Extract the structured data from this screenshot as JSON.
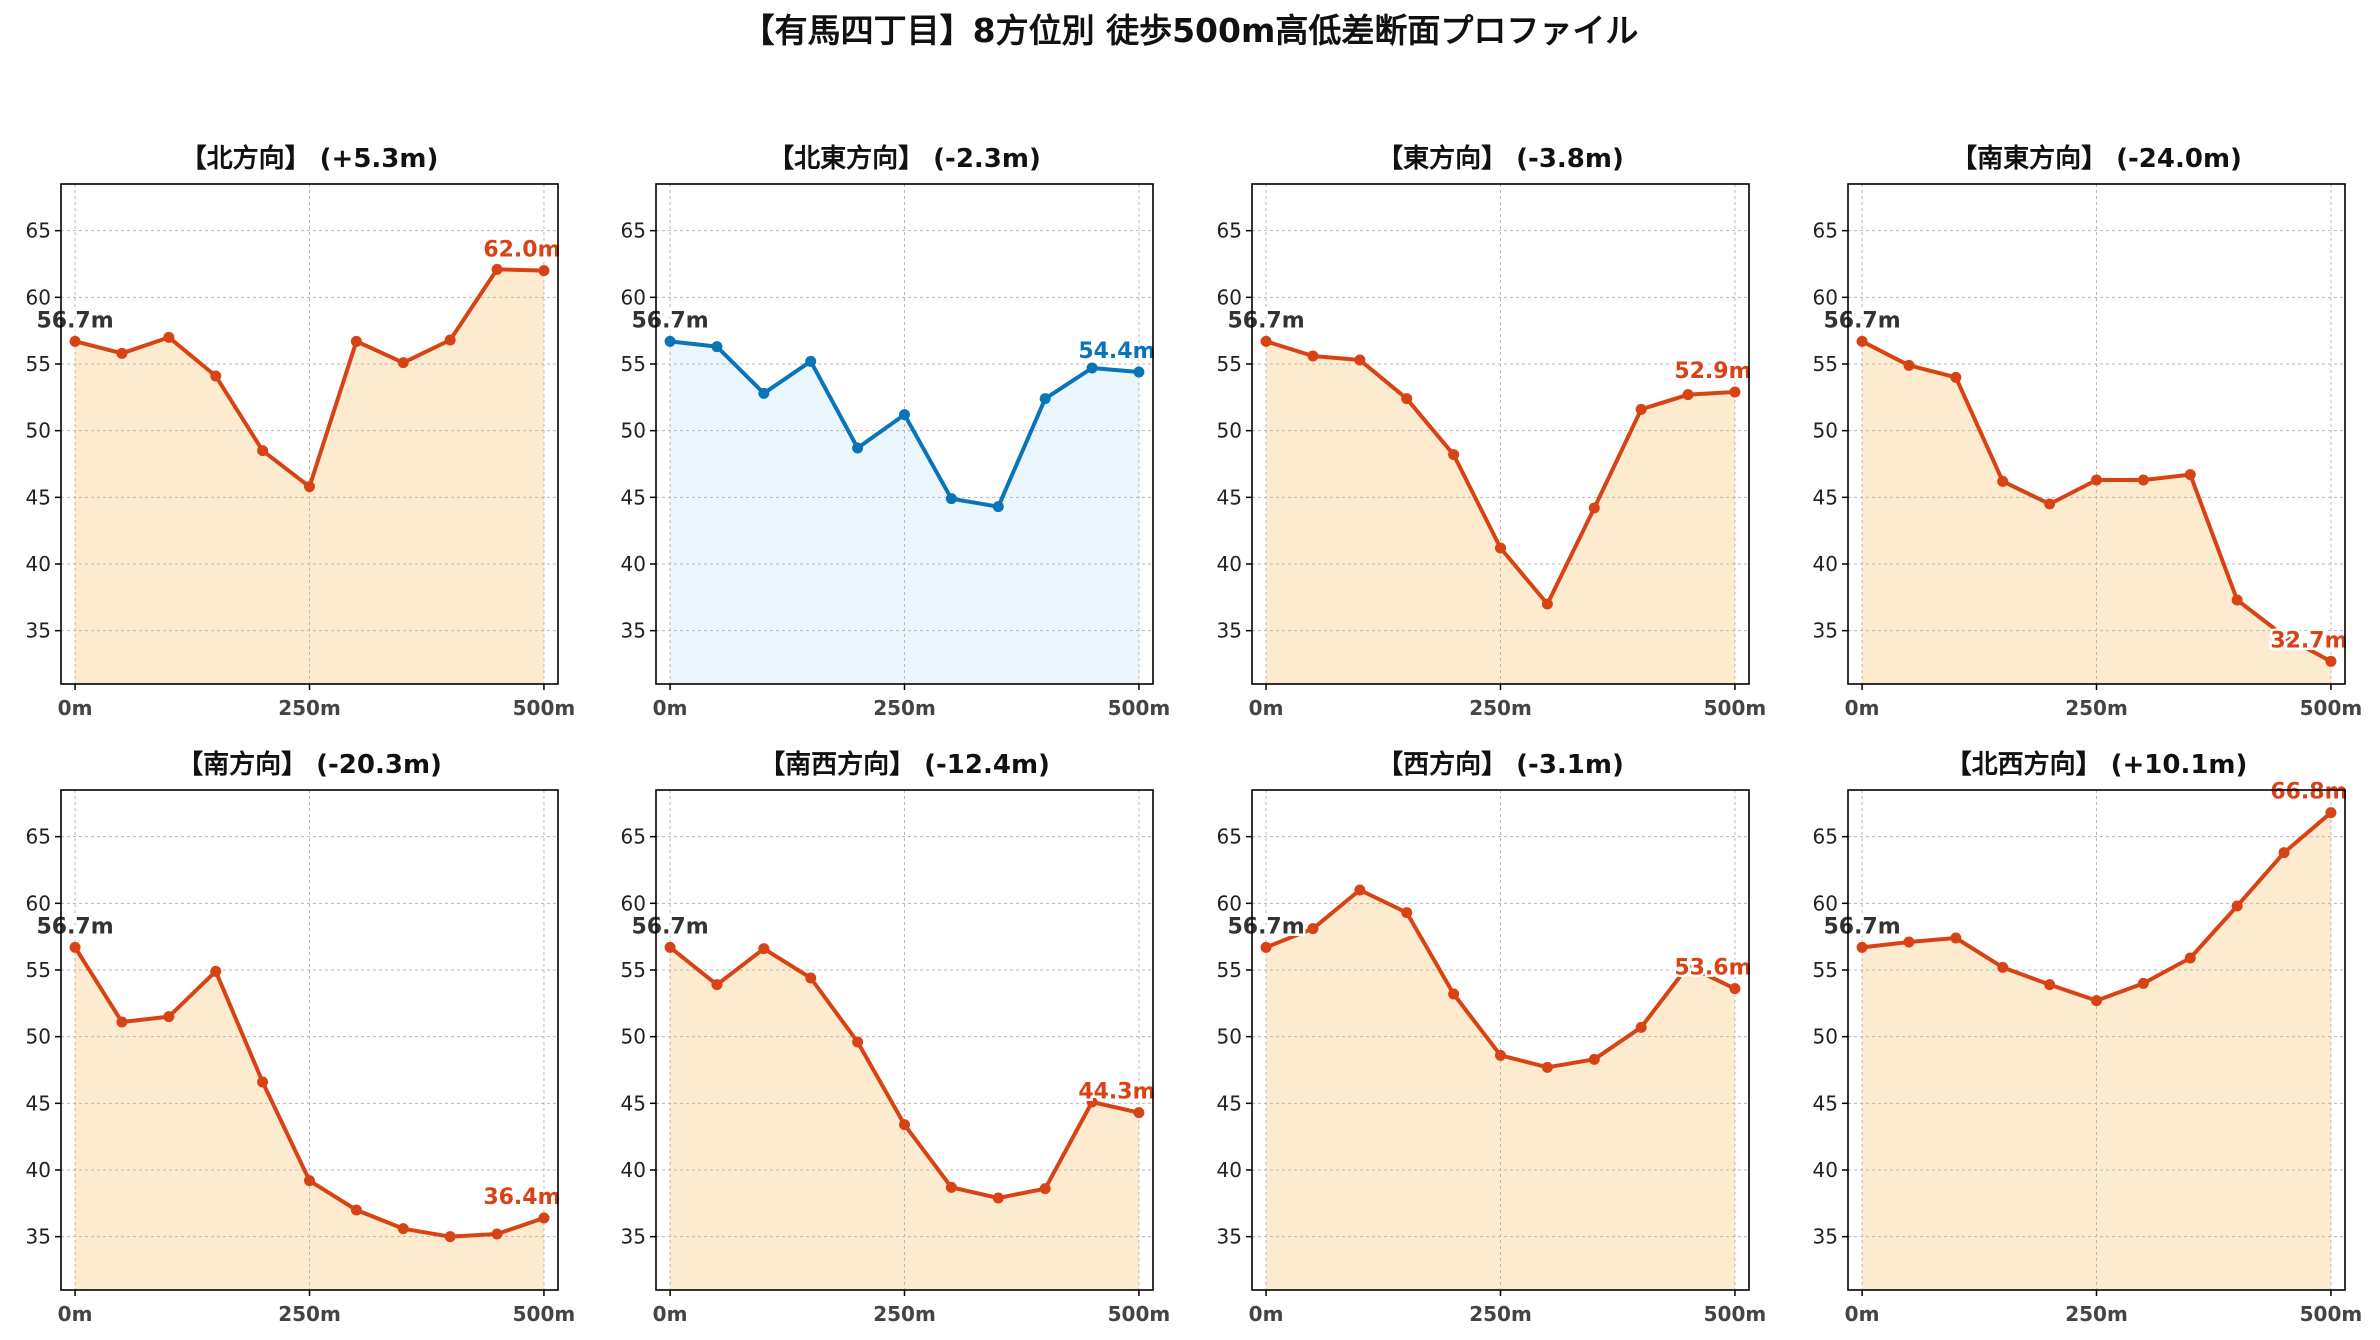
{
  "title": "【有馬四丁目】8方位別 徒歩500m高低差断面プロファイル",
  "colors": {
    "up": "#d84315",
    "up_fill": "#fdebd0",
    "down": "#0a74b8",
    "down_fill": "#eaf6fb",
    "start_label": "#333333"
  },
  "chart_data": [
    {
      "type": "area",
      "title": "【北方向】 (+5.3m)",
      "x": [
        0,
        50,
        100,
        150,
        200,
        250,
        300,
        350,
        400,
        450,
        500
      ],
      "values": [
        56.7,
        55.8,
        57.0,
        54.1,
        48.5,
        45.8,
        56.7,
        55.1,
        56.8,
        62.1,
        62.0
      ],
      "start_label": "56.7m",
      "end_label": "62.0m",
      "color": "up",
      "xticks": [
        "0m",
        "250m",
        "500m"
      ],
      "yticks": [
        35,
        40,
        45,
        50,
        55,
        60,
        65
      ],
      "ylim": [
        31,
        68.5
      ],
      "xlim": [
        -15,
        515
      ],
      "grid": true
    },
    {
      "type": "area",
      "title": "【北東方向】 (-2.3m)",
      "x": [
        0,
        50,
        100,
        150,
        200,
        250,
        300,
        350,
        400,
        450,
        500
      ],
      "values": [
        56.7,
        56.3,
        52.8,
        55.2,
        48.7,
        51.2,
        44.9,
        44.3,
        52.4,
        54.7,
        54.4
      ],
      "start_label": "56.7m",
      "end_label": "54.4m",
      "color": "down",
      "xticks": [
        "0m",
        "250m",
        "500m"
      ],
      "yticks": [
        35,
        40,
        45,
        50,
        55,
        60,
        65
      ],
      "ylim": [
        31,
        68.5
      ],
      "xlim": [
        -15,
        515
      ],
      "grid": true
    },
    {
      "type": "area",
      "title": "【東方向】 (-3.8m)",
      "x": [
        0,
        50,
        100,
        150,
        200,
        250,
        300,
        350,
        400,
        450,
        500
      ],
      "values": [
        56.7,
        55.6,
        55.3,
        52.4,
        48.2,
        41.2,
        37.0,
        44.2,
        51.6,
        52.7,
        52.9
      ],
      "start_label": "56.7m",
      "end_label": "52.9m",
      "color": "up",
      "xticks": [
        "0m",
        "250m",
        "500m"
      ],
      "yticks": [
        35,
        40,
        45,
        50,
        55,
        60,
        65
      ],
      "ylim": [
        31,
        68.5
      ],
      "xlim": [
        -15,
        515
      ],
      "grid": true
    },
    {
      "type": "area",
      "title": "【南東方向】 (-24.0m)",
      "x": [
        0,
        50,
        100,
        150,
        200,
        250,
        300,
        350,
        400,
        450,
        500
      ],
      "values": [
        56.7,
        54.9,
        54.0,
        46.2,
        44.5,
        46.3,
        46.3,
        46.7,
        37.3,
        34.6,
        32.7
      ],
      "start_label": "56.7m",
      "end_label": "32.7m",
      "color": "up",
      "xticks": [
        "0m",
        "250m",
        "500m"
      ],
      "yticks": [
        35,
        40,
        45,
        50,
        55,
        60,
        65
      ],
      "ylim": [
        31,
        68.5
      ],
      "xlim": [
        -15,
        515
      ],
      "grid": true
    },
    {
      "type": "area",
      "title": "【南方向】 (-20.3m)",
      "x": [
        0,
        50,
        100,
        150,
        200,
        250,
        300,
        350,
        400,
        450,
        500
      ],
      "values": [
        56.7,
        51.1,
        51.5,
        54.9,
        46.6,
        39.2,
        37.0,
        35.6,
        35.0,
        35.2,
        36.4
      ],
      "start_label": "56.7m",
      "end_label": "36.4m",
      "color": "up",
      "xticks": [
        "0m",
        "250m",
        "500m"
      ],
      "yticks": [
        35,
        40,
        45,
        50,
        55,
        60,
        65
      ],
      "ylim": [
        31,
        68.5
      ],
      "xlim": [
        -15,
        515
      ],
      "grid": true
    },
    {
      "type": "area",
      "title": "【南西方向】 (-12.4m)",
      "x": [
        0,
        50,
        100,
        150,
        200,
        250,
        300,
        350,
        400,
        450,
        500
      ],
      "values": [
        56.7,
        53.9,
        56.6,
        54.4,
        49.6,
        43.4,
        38.7,
        37.9,
        38.6,
        45.1,
        44.3
      ],
      "start_label": "56.7m",
      "end_label": "44.3m",
      "color": "up",
      "xticks": [
        "0m",
        "250m",
        "500m"
      ],
      "yticks": [
        35,
        40,
        45,
        50,
        55,
        60,
        65
      ],
      "ylim": [
        31,
        68.5
      ],
      "xlim": [
        -15,
        515
      ],
      "grid": true
    },
    {
      "type": "area",
      "title": "【西方向】 (-3.1m)",
      "x": [
        0,
        50,
        100,
        150,
        200,
        250,
        300,
        350,
        400,
        450,
        500
      ],
      "values": [
        56.7,
        58.1,
        61.0,
        59.3,
        53.2,
        48.6,
        47.7,
        48.3,
        50.7,
        55.3,
        53.6
      ],
      "start_label": "56.7m",
      "end_label": "53.6m",
      "color": "up",
      "xticks": [
        "0m",
        "250m",
        "500m"
      ],
      "yticks": [
        35,
        40,
        45,
        50,
        55,
        60,
        65
      ],
      "ylim": [
        31,
        68.5
      ],
      "xlim": [
        -15,
        515
      ],
      "grid": true
    },
    {
      "type": "area",
      "title": "【北西方向】 (+10.1m)",
      "x": [
        0,
        50,
        100,
        150,
        200,
        250,
        300,
        350,
        400,
        450,
        500
      ],
      "values": [
        56.7,
        57.1,
        57.4,
        55.2,
        53.9,
        52.7,
        54.0,
        55.9,
        59.8,
        63.8,
        66.8
      ],
      "start_label": "56.7m",
      "end_label": "66.8m",
      "color": "up",
      "xticks": [
        "0m",
        "250m",
        "500m"
      ],
      "yticks": [
        35,
        40,
        45,
        50,
        55,
        60,
        65
      ],
      "ylim": [
        31,
        68.5
      ],
      "xlim": [
        -15,
        515
      ],
      "grid": true
    }
  ]
}
